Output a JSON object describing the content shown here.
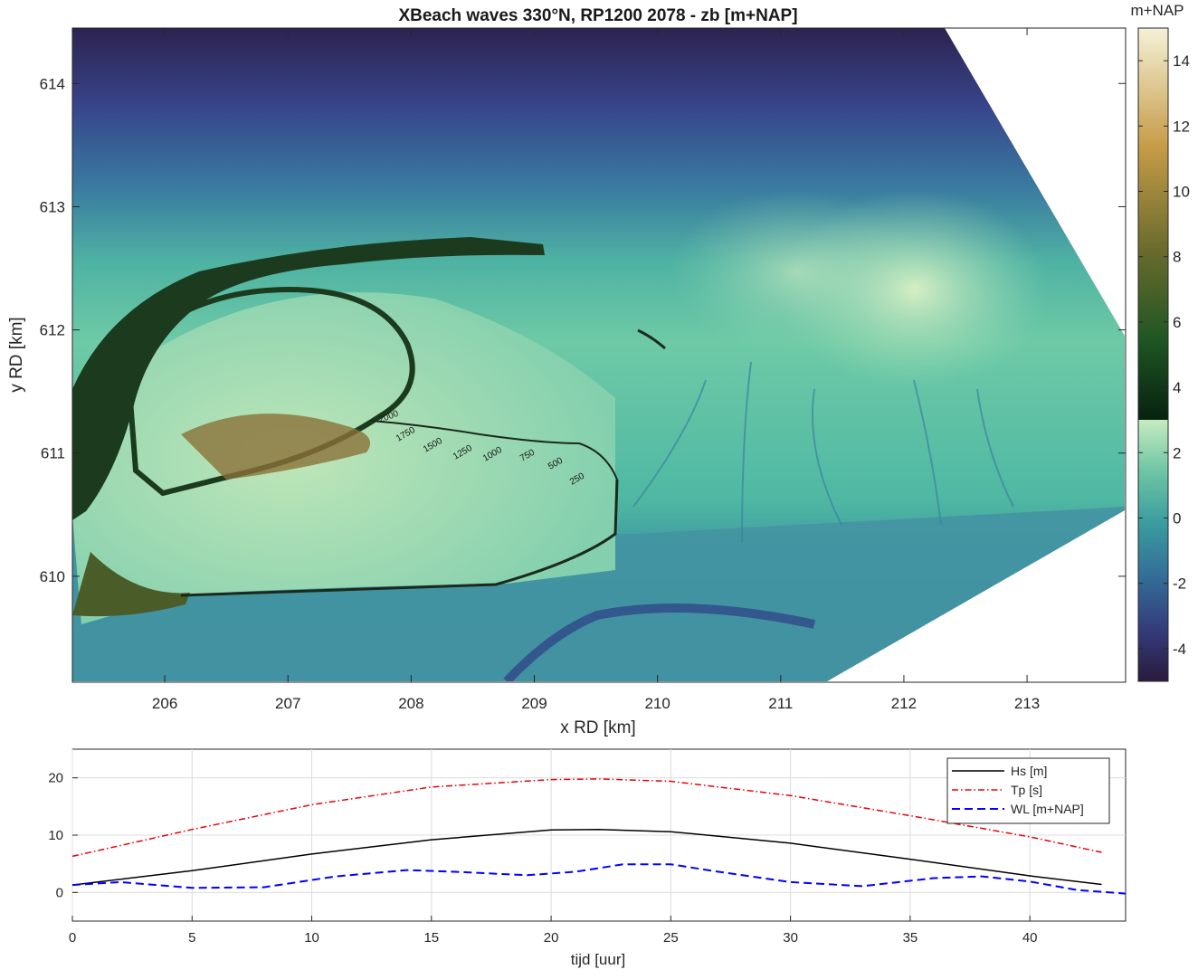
{
  "chart_data": [
    {
      "type": "heatmap",
      "title": "XBeach waves 330°N, RP1200 2078 - zb [m+NAP]",
      "xlabel": "x RD [km]",
      "ylabel": "y RD [km]",
      "xlim": [
        205.25,
        213.8
      ],
      "ylim": [
        609.14,
        614.45
      ],
      "xticks": [
        "206",
        "207",
        "208",
        "209",
        "210",
        "211",
        "212",
        "213"
      ],
      "yticks": [
        "610",
        "611",
        "612",
        "613",
        "614"
      ],
      "colorbar": {
        "label": "m+NAP",
        "range": [
          -5,
          15
        ],
        "ticks": [
          "-4",
          "-2",
          "0",
          "2",
          "4",
          "6",
          "8",
          "10",
          "12",
          "14"
        ]
      },
      "contour_labels": [
        "250",
        "500",
        "750",
        "1000",
        "1250",
        "1500",
        "1750",
        "2000"
      ],
      "grid": false
    },
    {
      "type": "line",
      "xlabel": "tijd [uur]",
      "ylabel": "",
      "xlim": [
        0,
        44
      ],
      "ylim": [
        -5,
        25
      ],
      "xticks": [
        "0",
        "5",
        "10",
        "15",
        "20",
        "25",
        "30",
        "35",
        "40"
      ],
      "yticks": [
        "0",
        "10",
        "20"
      ],
      "grid": true,
      "legend_position": "top-right",
      "series": [
        {
          "name": "Hs [m]",
          "color": "#000000",
          "style": "solid",
          "x": [
            0,
            5,
            10,
            15,
            20,
            22,
            25,
            30,
            35,
            40,
            43
          ],
          "y": [
            1.3,
            3.8,
            6.7,
            9.2,
            10.9,
            11.0,
            10.6,
            8.6,
            5.8,
            2.9,
            1.4
          ]
        },
        {
          "name": "Tp [s]",
          "color": "#e8000b",
          "style": "dashdot",
          "x": [
            0,
            5,
            10,
            15,
            20,
            22,
            25,
            30,
            35,
            40,
            43
          ],
          "y": [
            6.3,
            11.0,
            15.3,
            18.4,
            19.7,
            19.8,
            19.4,
            16.9,
            13.4,
            9.7,
            7.0
          ]
        },
        {
          "name": "WL [m+NAP]",
          "color": "#0000ff",
          "style": "dashed",
          "x": [
            0,
            2,
            5,
            8,
            11,
            14,
            16,
            19,
            21,
            23,
            25,
            27,
            30,
            33,
            36,
            38,
            40,
            42,
            44
          ],
          "y": [
            1.3,
            1.8,
            0.8,
            0.9,
            2.8,
            3.9,
            3.6,
            3.0,
            3.6,
            4.9,
            4.9,
            3.6,
            1.8,
            1.1,
            2.5,
            2.8,
            1.9,
            0.4,
            -0.2
          ]
        }
      ]
    }
  ]
}
